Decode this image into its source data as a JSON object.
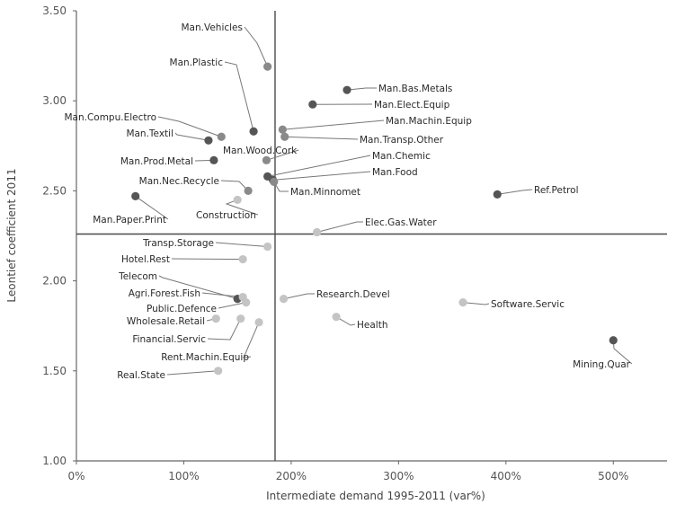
{
  "chart_data": {
    "type": "scatter",
    "title": "",
    "xlabel": "Intermediate demand 1995-2011 (var%)",
    "ylabel": "Leontief coefficient 2011",
    "xlim": [
      0,
      550
    ],
    "ylim": [
      1.0,
      3.5
    ],
    "x_ticks": [
      0,
      100,
      200,
      300,
      400,
      500
    ],
    "x_tick_labels": [
      "0%",
      "100%",
      "200%",
      "300%",
      "400%",
      "500%"
    ],
    "y_ticks": [
      1.0,
      1.5,
      2.0,
      2.5,
      3.0,
      3.5
    ],
    "y_tick_labels": [
      "1.00",
      "1.50",
      "2.00",
      "2.50",
      "3.00",
      "3.50"
    ],
    "reference_lines": {
      "x": 185,
      "y": 2.26
    },
    "grid": false,
    "legend": "none",
    "colors": {
      "dark": "#555555",
      "mid": "#8a8a8a",
      "light": "#c4c4c4",
      "line": "#777777",
      "axis": "#666666"
    },
    "points": [
      {
        "name": "Man.Vehicles",
        "x": 178,
        "y": 3.19,
        "shade": "mid"
      },
      {
        "name": "Man.Plastic",
        "x": 165,
        "y": 2.83,
        "shade": "dark"
      },
      {
        "name": "Man.Bas.Metals",
        "x": 252,
        "y": 3.06,
        "shade": "dark"
      },
      {
        "name": "Man.Elect.Equip",
        "x": 220,
        "y": 2.98,
        "shade": "dark"
      },
      {
        "name": "Man.Machin.Equip",
        "x": 192,
        "y": 2.84,
        "shade": "mid"
      },
      {
        "name": "Man.Compu.Electro",
        "x": 135,
        "y": 2.8,
        "shade": "mid"
      },
      {
        "name": "Man.Textil",
        "x": 123,
        "y": 2.78,
        "shade": "dark"
      },
      {
        "name": "Man.Transp.Other",
        "x": 194,
        "y": 2.8,
        "shade": "mid"
      },
      {
        "name": "Man.Wood.Cork",
        "x": 177,
        "y": 2.67,
        "shade": "mid"
      },
      {
        "name": "Man.Prod.Metal",
        "x": 128,
        "y": 2.67,
        "shade": "dark"
      },
      {
        "name": "Man.Chemic",
        "x": 178,
        "y": 2.58,
        "shade": "dark"
      },
      {
        "name": "Man.Food",
        "x": 183,
        "y": 2.56,
        "shade": "dark"
      },
      {
        "name": "Man.Nec.Recycle",
        "x": 160,
        "y": 2.5,
        "shade": "mid"
      },
      {
        "name": "Man.Minnomet",
        "x": 184,
        "y": 2.55,
        "shade": "mid"
      },
      {
        "name": "Man.Paper.Print",
        "x": 55,
        "y": 2.47,
        "shade": "dark"
      },
      {
        "name": "Construction",
        "x": 150,
        "y": 2.45,
        "shade": "light"
      },
      {
        "name": "Ref.Petrol",
        "x": 392,
        "y": 2.48,
        "shade": "dark"
      },
      {
        "name": "Elec.Gas.Water",
        "x": 224,
        "y": 2.27,
        "shade": "light"
      },
      {
        "name": "Transp.Storage",
        "x": 178,
        "y": 2.19,
        "shade": "light"
      },
      {
        "name": "Hotel.Rest",
        "x": 155,
        "y": 2.12,
        "shade": "light"
      },
      {
        "name": "Telecom",
        "x": 150,
        "y": 1.9,
        "shade": "dark"
      },
      {
        "name": "Agri.Forest.Fish",
        "x": 155,
        "y": 1.91,
        "shade": "light"
      },
      {
        "name": "Public.Defence",
        "x": 158,
        "y": 1.88,
        "shade": "light"
      },
      {
        "name": "Research.Devel",
        "x": 193,
        "y": 1.9,
        "shade": "light"
      },
      {
        "name": "Software.Servic",
        "x": 360,
        "y": 1.88,
        "shade": "light"
      },
      {
        "name": "Wholesale.Retail",
        "x": 130,
        "y": 1.79,
        "shade": "light"
      },
      {
        "name": "Health",
        "x": 242,
        "y": 1.8,
        "shade": "light"
      },
      {
        "name": "Financial.Servic",
        "x": 153,
        "y": 1.79,
        "shade": "light"
      },
      {
        "name": "Rent.Machin.Equip",
        "x": 170,
        "y": 1.77,
        "shade": "light"
      },
      {
        "name": "Mining.Quar",
        "x": 500,
        "y": 1.67,
        "shade": "dark"
      },
      {
        "name": "Real.State",
        "x": 132,
        "y": 1.5,
        "shade": "light"
      }
    ]
  }
}
